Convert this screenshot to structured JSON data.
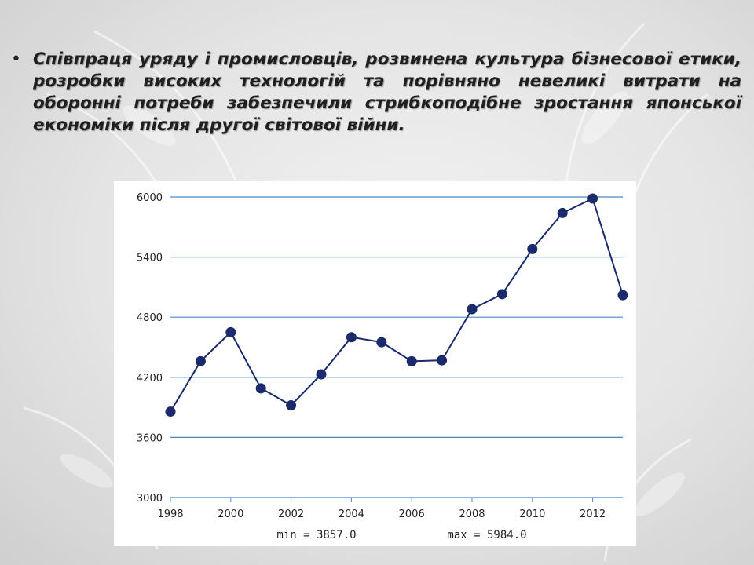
{
  "slide": {
    "bullet_symbol": "•",
    "text": "Співпраця уряду і промисловців, розвинена культура бізнесової етики, розробки високих технологій та порівняно невеликі витрати на оборонні потреби забезпечили стрибкоподібне зростання японської економіки після другої світової війни."
  },
  "colors": {
    "series": "#1a2a6c",
    "grid": "#4a88c0",
    "axis": "#4a88c0"
  },
  "chart_data": {
    "type": "line",
    "x": [
      1998,
      1999,
      2000,
      2001,
      2002,
      2003,
      2004,
      2005,
      2006,
      2007,
      2008,
      2009,
      2010,
      2011,
      2012,
      2013
    ],
    "series": [
      {
        "values": [
          3857,
          4360,
          4650,
          4090,
          3920,
          4230,
          4600,
          4550,
          4360,
          4370,
          4880,
          5030,
          5480,
          5840,
          5984,
          5020
        ]
      }
    ],
    "ylim": [
      3000,
      6000
    ],
    "yticks": [
      "3000",
      "3600",
      "4200",
      "4800",
      "5400",
      "6000"
    ],
    "xticks": [
      "1998",
      "2000",
      "2002",
      "2004",
      "2006",
      "2008",
      "2010",
      "2012"
    ],
    "xlim": [
      1998,
      2013
    ],
    "grid": true,
    "min_label": "min = 3857.0",
    "max_label": "max = 5984.0"
  }
}
